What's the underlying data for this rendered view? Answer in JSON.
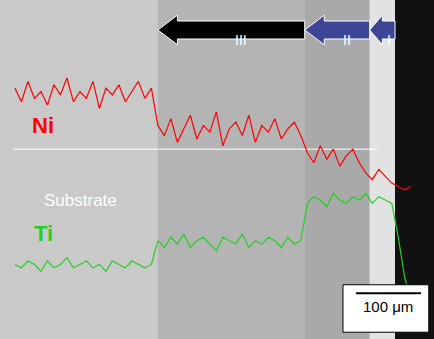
{
  "chart_data": {
    "type": "line",
    "xlim": [
      -23,
      645
    ],
    "ylim": [
      0,
      100
    ],
    "tick_labels": false,
    "grid": false,
    "x": [
      0,
      10,
      20,
      30,
      40,
      50,
      60,
      70,
      80,
      90,
      100,
      110,
      120,
      130,
      140,
      150,
      160,
      170,
      180,
      190,
      200,
      210,
      220,
      230,
      240,
      250,
      260,
      270,
      280,
      290,
      300,
      310,
      320,
      330,
      340,
      350,
      360,
      370,
      380,
      390,
      400,
      410,
      420,
      430,
      440,
      450,
      460,
      470,
      480,
      490,
      500,
      510,
      520,
      530,
      540,
      550,
      560,
      570,
      580,
      590,
      600,
      610
    ],
    "series": [
      {
        "name": "Ni",
        "color": "#ff0000",
        "values": [
          74,
          70,
          76,
          71,
          73,
          69,
          75,
          72,
          77,
          70,
          73,
          71,
          76,
          68,
          74,
          72,
          75,
          70,
          73,
          76,
          71,
          74,
          63,
          60,
          65,
          58,
          62,
          66,
          59,
          63,
          61,
          67,
          57,
          62,
          64,
          60,
          66,
          58,
          63,
          61,
          65,
          59,
          62,
          64,
          60,
          55,
          52,
          57,
          53,
          56,
          51,
          54,
          56,
          52,
          49,
          47,
          50,
          48,
          46,
          45,
          44,
          45
        ]
      },
      {
        "name": "Ti",
        "color": "#22d022",
        "values": [
          22,
          21,
          23,
          22,
          20,
          23,
          21,
          22,
          24,
          21,
          22,
          23,
          21,
          22,
          20,
          23,
          22,
          21,
          23,
          22,
          21,
          22,
          29,
          27,
          30,
          28,
          31,
          27,
          29,
          30,
          28,
          26,
          30,
          29,
          28,
          31,
          27,
          29,
          28,
          30,
          29,
          27,
          30,
          28,
          29,
          40,
          42,
          41,
          39,
          43,
          41,
          40,
          42,
          41,
          43,
          40,
          42,
          41,
          40,
          30,
          18,
          11
        ]
      }
    ],
    "layers": [
      {
        "label": "III",
        "from": 220,
        "to": 446,
        "color": "#000000"
      },
      {
        "label": "II",
        "from": 446,
        "to": 546,
        "color": "#3b4796"
      },
      {
        "label": "I",
        "from": 546,
        "to": 585,
        "color": "#3b4796"
      }
    ],
    "annotations": [
      "Substrate"
    ],
    "scale_bar": {
      "label": "100 μm",
      "length": 100
    }
  }
}
